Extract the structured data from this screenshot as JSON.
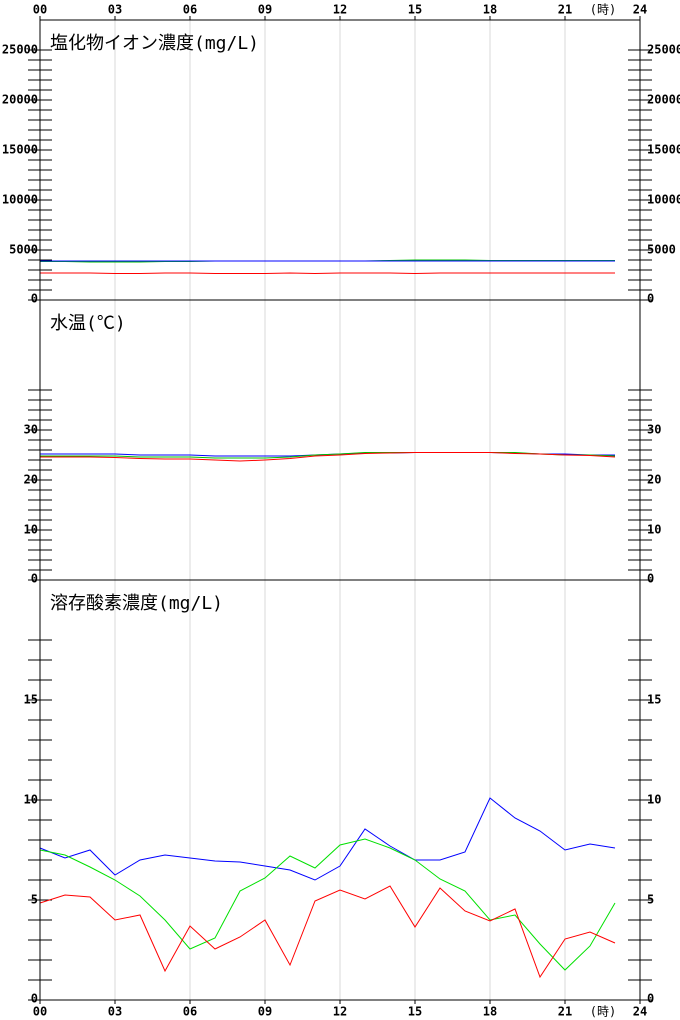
{
  "chart_data": [
    {
      "type": "line",
      "title": "塩化物イオン濃度(mg/L)",
      "xlabel": "(時)",
      "xaxis_position": "top",
      "x": [
        0,
        1,
        2,
        3,
        4,
        5,
        6,
        7,
        8,
        9,
        10,
        11,
        12,
        13,
        14,
        15,
        16,
        17,
        18,
        19,
        20,
        21,
        22,
        23
      ],
      "xlim": [
        0,
        24
      ],
      "xticks": [
        {
          "value": 0,
          "label": "00"
        },
        {
          "value": 3,
          "label": "03"
        },
        {
          "value": 6,
          "label": "06"
        },
        {
          "value": 9,
          "label": "09"
        },
        24,
        {
          "value": 12,
          "label": "12"
        },
        {
          "value": 15,
          "label": "15"
        },
        18,
        {
          "value": 21,
          "label": "21"
        }
      ],
      "ylim": [
        0,
        28000
      ],
      "yticks": [
        0,
        5000,
        10000,
        15000,
        20000,
        25000
      ],
      "minor_yticks": [
        1000,
        2000,
        3000,
        4000,
        6000,
        7000,
        8000,
        9000,
        11000,
        12000,
        13000,
        14000,
        16000,
        17000,
        18000,
        19000,
        21000,
        22000,
        23000,
        24000
      ],
      "series": [
        {
          "color": "#00c000",
          "values": [
            3850,
            3850,
            3800,
            3800,
            3800,
            3850,
            3850,
            3900,
            3900,
            3900,
            3900,
            3900,
            3900,
            3900,
            3950,
            4000,
            4000,
            4000,
            3950,
            3950,
            3950,
            3950,
            3950,
            3950
          ]
        },
        {
          "color": "#0000ff",
          "values": [
            3900,
            3900,
            3900,
            3900,
            3900,
            3900,
            3900,
            3900,
            3900,
            3900,
            3900,
            3900,
            3900,
            3900,
            3900,
            3900,
            3900,
            3900,
            3900,
            3900,
            3900,
            3900,
            3900,
            3900
          ]
        },
        {
          "color": "#ff0000",
          "values": [
            2700,
            2700,
            2700,
            2650,
            2650,
            2700,
            2700,
            2650,
            2650,
            2650,
            2700,
            2650,
            2700,
            2700,
            2700,
            2650,
            2700,
            2700,
            2700,
            2700,
            2700,
            2700,
            2700,
            2700
          ]
        }
      ]
    },
    {
      "type": "line",
      "title": "水温(℃)",
      "x": [
        0,
        1,
        2,
        3,
        4,
        5,
        6,
        7,
        8,
        9,
        10,
        11,
        12,
        13,
        14,
        15,
        16,
        17,
        18,
        19,
        20,
        21,
        22,
        23
      ],
      "xlim": [
        0,
        24
      ],
      "xticks": [
        0,
        3,
        6,
        9,
        12,
        15,
        18,
        21,
        24
      ],
      "ylim": [
        0,
        56
      ],
      "yticks": [
        0,
        10,
        20,
        30
      ],
      "minor_yticks": [
        2,
        4,
        6,
        8,
        12,
        14,
        16,
        18,
        22,
        24,
        26,
        28,
        32,
        34,
        36,
        38
      ],
      "series": [
        {
          "color": "#0000ff",
          "values": [
            25.2,
            25.2,
            25.2,
            25.2,
            25,
            25,
            25,
            24.8,
            24.8,
            24.8,
            24.8,
            25,
            25.2,
            25.4,
            25.4,
            25.5,
            25.5,
            25.5,
            25.5,
            25.4,
            25.2,
            25.2,
            25,
            25
          ]
        },
        {
          "color": "#00c000",
          "values": [
            24.8,
            24.8,
            24.8,
            24.8,
            24.6,
            24.6,
            24.6,
            24.4,
            24.4,
            24.4,
            24.6,
            25,
            25.2,
            25.5,
            25.5,
            25.5,
            25.5,
            25.5,
            25.5,
            25.5,
            25.2,
            25,
            25,
            24.8
          ]
        },
        {
          "color": "#ff0000",
          "values": [
            24.6,
            24.6,
            24.6,
            24.5,
            24.3,
            24.2,
            24.2,
            24,
            23.8,
            24,
            24.3,
            24.8,
            25,
            25.3,
            25.4,
            25.5,
            25.5,
            25.5,
            25.5,
            25.3,
            25.2,
            25,
            24.9,
            24.6
          ]
        }
      ]
    },
    {
      "type": "line",
      "title": "溶存酸素濃度(mg/L)",
      "xlabel": "(時)",
      "xaxis_position": "bottom",
      "x": [
        0,
        1,
        2,
        3,
        4,
        5,
        6,
        7,
        8,
        9,
        10,
        11,
        12,
        13,
        14,
        15,
        16,
        17,
        18,
        19,
        20,
        21,
        22,
        23
      ],
      "xlim": [
        0,
        24
      ],
      "xticks": [
        {
          "value": 0,
          "label": "00"
        },
        {
          "value": 3,
          "label": "03"
        },
        {
          "value": 6,
          "label": "06"
        },
        {
          "value": 9,
          "label": "09"
        },
        {
          "value": 12,
          "label": "12"
        },
        {
          "value": 15,
          "label": "15"
        },
        18,
        {
          "value": 21,
          "label": "21"
        },
        24
      ],
      "ylim": [
        0,
        21
      ],
      "yticks": [
        0,
        5,
        10,
        15
      ],
      "minor_yticks": [
        1,
        2,
        3,
        4,
        6,
        7,
        8,
        9,
        11,
        12,
        13,
        14,
        16,
        17,
        18
      ],
      "series": [
        {
          "color": "#0000ff",
          "values": [
            7.6,
            7.1,
            7.5,
            6.25,
            7,
            7.25,
            7.1,
            6.95,
            6.9,
            6.7,
            6.5,
            6,
            6.7,
            8.55,
            7.7,
            7,
            7,
            7.4,
            10.1,
            9.1,
            8.45,
            7.5,
            7.8,
            7.6
          ]
        },
        {
          "color": "#00e000",
          "values": [
            7.5,
            7.25,
            6.65,
            6,
            5.2,
            4,
            2.55,
            3.1,
            5.45,
            6.1,
            7.2,
            6.6,
            7.75,
            8.05,
            7.6,
            7,
            6.05,
            5.45,
            4,
            4.25,
            2.8,
            1.5,
            2.7,
            4.85
          ]
        },
        {
          "color": "#ff0000",
          "values": [
            4.85,
            5.25,
            5.15,
            4,
            4.25,
            1.45,
            3.7,
            2.55,
            3.15,
            4,
            1.75,
            4.95,
            5.5,
            5.05,
            5.7,
            3.65,
            5.6,
            4.45,
            3.95,
            4.55,
            1.15,
            3.05,
            3.4,
            2.85
          ]
        }
      ]
    }
  ]
}
